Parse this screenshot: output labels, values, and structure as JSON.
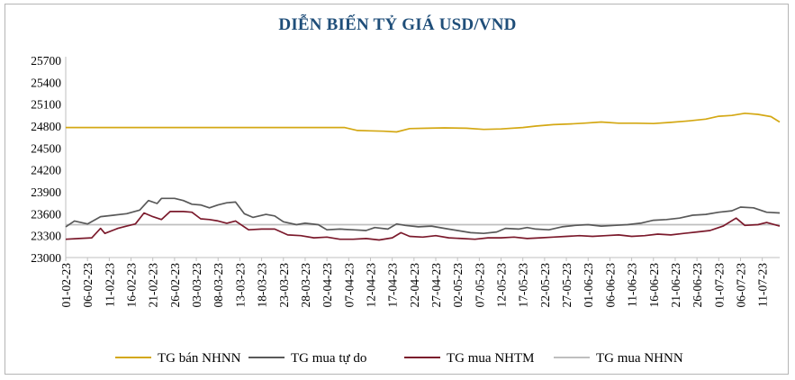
{
  "chart_data": {
    "type": "line",
    "title": "DIỄN BIẾN TỶ GIÁ USD/VND",
    "xlabel": "",
    "ylabel": "",
    "ylim": [
      23000,
      25700
    ],
    "yticks": [
      23000,
      23300,
      23600,
      23900,
      24200,
      24500,
      24800,
      25100,
      25400,
      25700
    ],
    "x_tick_labels": [
      "01-02-23",
      "06-02-23",
      "11-02-23",
      "16-02-23",
      "21-02-23",
      "26-02-23",
      "03-03-23",
      "08-03-23",
      "13-03-23",
      "18-03-23",
      "23-03-23",
      "28-03-23",
      "02-04-23",
      "07-04-23",
      "12-04-23",
      "17-04-23",
      "22-04-23",
      "27-04-23",
      "02-05-23",
      "07-05-23",
      "12-05-23",
      "17-05-23",
      "22-05-23",
      "27-05-23",
      "01-06-23",
      "06-06-23",
      "11-06-23",
      "16-06-23",
      "21-06-23",
      "26-06-23",
      "01-07-23",
      "06-07-23",
      "11-07-23"
    ],
    "x_tick_days": [
      0,
      5,
      10,
      15,
      20,
      25,
      30,
      35,
      40,
      45,
      50,
      55,
      60,
      65,
      70,
      75,
      80,
      85,
      90,
      95,
      100,
      105,
      110,
      115,
      120,
      125,
      130,
      135,
      140,
      145,
      150,
      155,
      160
    ],
    "x_range_days": [
      0,
      164
    ],
    "legend_position": "bottom",
    "grid": false,
    "series": [
      {
        "name": "TG bán NHNN",
        "color": "#d4a814",
        "points": [
          [
            0,
            24780
          ],
          [
            10,
            24780
          ],
          [
            20,
            24780
          ],
          [
            30,
            24780
          ],
          [
            40,
            24780
          ],
          [
            50,
            24780
          ],
          [
            60,
            24780
          ],
          [
            64,
            24780
          ],
          [
            67,
            24740
          ],
          [
            70,
            24735
          ],
          [
            73,
            24730
          ],
          [
            76,
            24720
          ],
          [
            79,
            24765
          ],
          [
            83,
            24770
          ],
          [
            87,
            24775
          ],
          [
            92,
            24770
          ],
          [
            96,
            24755
          ],
          [
            100,
            24760
          ],
          [
            105,
            24780
          ],
          [
            108,
            24800
          ],
          [
            112,
            24820
          ],
          [
            116,
            24830
          ],
          [
            119,
            24840
          ],
          [
            123,
            24855
          ],
          [
            127,
            24840
          ],
          [
            131,
            24840
          ],
          [
            135,
            24835
          ],
          [
            139,
            24850
          ],
          [
            143,
            24870
          ],
          [
            147,
            24895
          ],
          [
            150,
            24935
          ],
          [
            153,
            24945
          ],
          [
            156,
            24975
          ],
          [
            159,
            24960
          ],
          [
            162,
            24930
          ],
          [
            164,
            24855
          ]
        ]
      },
      {
        "name": "TG mua tự do",
        "color": "#595959",
        "points": [
          [
            0,
            23420
          ],
          [
            2,
            23500
          ],
          [
            5,
            23460
          ],
          [
            8,
            23560
          ],
          [
            11,
            23580
          ],
          [
            14,
            23600
          ],
          [
            17,
            23650
          ],
          [
            19,
            23780
          ],
          [
            21,
            23740
          ],
          [
            22,
            23810
          ],
          [
            25,
            23810
          ],
          [
            27,
            23780
          ],
          [
            29,
            23730
          ],
          [
            31,
            23720
          ],
          [
            33,
            23680
          ],
          [
            35,
            23720
          ],
          [
            37,
            23750
          ],
          [
            39,
            23760
          ],
          [
            41,
            23600
          ],
          [
            43,
            23550
          ],
          [
            46,
            23590
          ],
          [
            48,
            23570
          ],
          [
            50,
            23490
          ],
          [
            53,
            23450
          ],
          [
            55,
            23470
          ],
          [
            58,
            23450
          ],
          [
            60,
            23380
          ],
          [
            63,
            23390
          ],
          [
            66,
            23380
          ],
          [
            69,
            23370
          ],
          [
            71,
            23410
          ],
          [
            74,
            23390
          ],
          [
            76,
            23460
          ],
          [
            78,
            23440
          ],
          [
            81,
            23420
          ],
          [
            84,
            23430
          ],
          [
            87,
            23400
          ],
          [
            90,
            23370
          ],
          [
            93,
            23340
          ],
          [
            96,
            23330
          ],
          [
            99,
            23350
          ],
          [
            101,
            23400
          ],
          [
            104,
            23390
          ],
          [
            106,
            23410
          ],
          [
            108,
            23390
          ],
          [
            111,
            23380
          ],
          [
            114,
            23420
          ],
          [
            117,
            23440
          ],
          [
            120,
            23450
          ],
          [
            123,
            23430
          ],
          [
            126,
            23440
          ],
          [
            129,
            23450
          ],
          [
            132,
            23470
          ],
          [
            135,
            23510
          ],
          [
            138,
            23520
          ],
          [
            141,
            23540
          ],
          [
            144,
            23580
          ],
          [
            147,
            23590
          ],
          [
            150,
            23620
          ],
          [
            153,
            23640
          ],
          [
            155,
            23690
          ],
          [
            158,
            23680
          ],
          [
            161,
            23620
          ],
          [
            164,
            23610
          ]
        ]
      },
      {
        "name": "TG mua NHTM",
        "color": "#7b1a2c",
        "points": [
          [
            0,
            23250
          ],
          [
            3,
            23260
          ],
          [
            6,
            23270
          ],
          [
            8,
            23400
          ],
          [
            9,
            23330
          ],
          [
            12,
            23400
          ],
          [
            14,
            23430
          ],
          [
            16,
            23460
          ],
          [
            18,
            23610
          ],
          [
            20,
            23560
          ],
          [
            22,
            23520
          ],
          [
            24,
            23630
          ],
          [
            27,
            23630
          ],
          [
            29,
            23620
          ],
          [
            31,
            23530
          ],
          [
            33,
            23520
          ],
          [
            35,
            23500
          ],
          [
            37,
            23470
          ],
          [
            39,
            23500
          ],
          [
            42,
            23380
          ],
          [
            45,
            23390
          ],
          [
            48,
            23390
          ],
          [
            51,
            23310
          ],
          [
            54,
            23300
          ],
          [
            57,
            23270
          ],
          [
            60,
            23280
          ],
          [
            63,
            23250
          ],
          [
            66,
            23250
          ],
          [
            69,
            23260
          ],
          [
            72,
            23240
          ],
          [
            75,
            23270
          ],
          [
            77,
            23340
          ],
          [
            79,
            23290
          ],
          [
            82,
            23280
          ],
          [
            85,
            23300
          ],
          [
            88,
            23270
          ],
          [
            91,
            23260
          ],
          [
            94,
            23250
          ],
          [
            97,
            23270
          ],
          [
            100,
            23270
          ],
          [
            103,
            23280
          ],
          [
            106,
            23260
          ],
          [
            109,
            23270
          ],
          [
            112,
            23280
          ],
          [
            115,
            23290
          ],
          [
            118,
            23300
          ],
          [
            121,
            23290
          ],
          [
            124,
            23300
          ],
          [
            127,
            23310
          ],
          [
            130,
            23290
          ],
          [
            133,
            23300
          ],
          [
            136,
            23320
          ],
          [
            139,
            23310
          ],
          [
            142,
            23330
          ],
          [
            145,
            23350
          ],
          [
            148,
            23370
          ],
          [
            151,
            23430
          ],
          [
            154,
            23540
          ],
          [
            156,
            23440
          ],
          [
            159,
            23450
          ],
          [
            161,
            23480
          ],
          [
            164,
            23430
          ]
        ]
      },
      {
        "name": "TG mua NHNN",
        "color": "#bfbfbf",
        "points": [
          [
            0,
            23450
          ],
          [
            164,
            23450
          ]
        ]
      }
    ]
  }
}
